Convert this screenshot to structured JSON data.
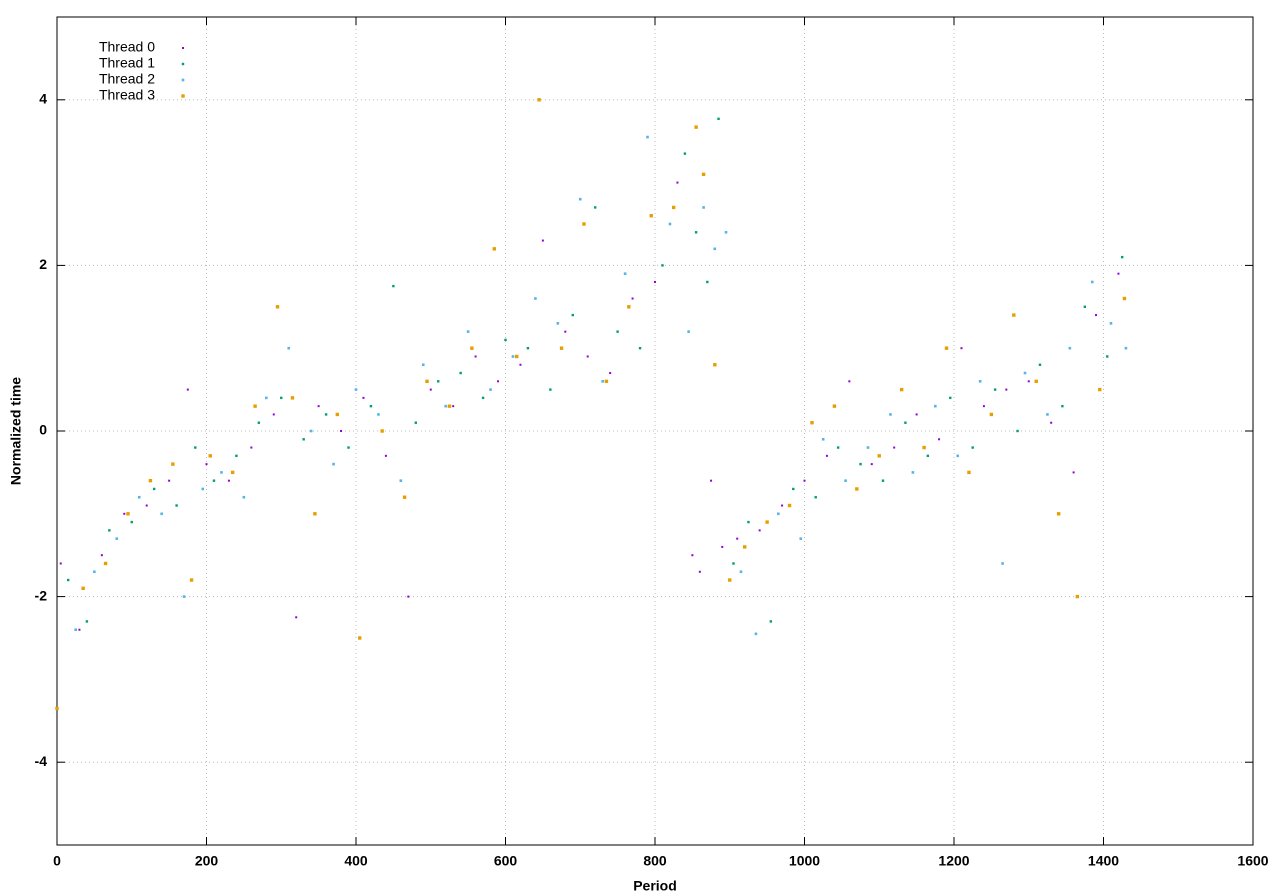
{
  "chart_data": {
    "type": "scatter",
    "x_label": "Period",
    "y_label": "Normalized time",
    "xlim": [
      0,
      1600
    ],
    "ylim": [
      -5,
      5
    ],
    "xticks": [
      0,
      200,
      400,
      600,
      800,
      1000,
      1200,
      1400,
      1600
    ],
    "yticks": [
      -4,
      -2,
      0,
      2,
      4
    ],
    "grid": true,
    "legend": "top-left",
    "series": [
      {
        "name": "Thread 0",
        "color": "#9400d3",
        "x": [
          5,
          30,
          60,
          90,
          120,
          150,
          175,
          200,
          230,
          260,
          290,
          320,
          350,
          380,
          410,
          440,
          470,
          500,
          530,
          560,
          590,
          620,
          650,
          680,
          710,
          740,
          770,
          800,
          830,
          850,
          860,
          875,
          890,
          910,
          940,
          970,
          1000,
          1030,
          1060,
          1090,
          1120,
          1150,
          1180,
          1210,
          1240,
          1270,
          1300,
          1330,
          1360,
          1390,
          1420
        ],
        "values": [
          -1.6,
          -2.4,
          -1.5,
          -1.0,
          -0.9,
          -0.6,
          0.5,
          -0.4,
          -0.6,
          -0.2,
          0.2,
          -2.25,
          0.3,
          0.0,
          0.4,
          -0.3,
          -2.0,
          0.5,
          0.3,
          0.9,
          0.6,
          0.8,
          2.3,
          1.2,
          0.9,
          0.7,
          1.6,
          1.8,
          3.0,
          -1.5,
          -1.7,
          -0.6,
          -1.4,
          -1.3,
          -1.2,
          -0.9,
          -0.6,
          -0.3,
          0.6,
          -0.4,
          -0.2,
          0.2,
          -0.1,
          1.0,
          0.3,
          0.5,
          0.6,
          0.1,
          -0.5,
          1.4,
          1.9
        ]
      },
      {
        "name": "Thread 1",
        "color": "#009e73",
        "x": [
          15,
          40,
          70,
          100,
          130,
          160,
          185,
          210,
          240,
          270,
          300,
          330,
          360,
          390,
          420,
          450,
          480,
          510,
          540,
          570,
          600,
          630,
          660,
          690,
          720,
          750,
          780,
          810,
          840,
          855,
          870,
          885,
          905,
          925,
          955,
          985,
          1015,
          1045,
          1075,
          1105,
          1135,
          1165,
          1195,
          1225,
          1255,
          1285,
          1315,
          1345,
          1375,
          1405,
          1425
        ],
        "values": [
          -1.8,
          -2.3,
          -1.2,
          -1.1,
          -0.7,
          -0.9,
          -0.2,
          -0.6,
          -0.3,
          0.1,
          0.4,
          -0.1,
          0.2,
          -0.2,
          0.3,
          1.75,
          0.1,
          0.6,
          0.7,
          0.4,
          1.1,
          1.0,
          0.5,
          1.4,
          2.7,
          1.2,
          1.0,
          2.0,
          3.35,
          2.4,
          1.8,
          3.77,
          -1.6,
          -1.1,
          -2.3,
          -0.7,
          -0.8,
          -0.2,
          -0.4,
          -0.6,
          0.1,
          -0.3,
          0.4,
          -0.2,
          0.5,
          0.0,
          0.8,
          0.3,
          1.5,
          0.9,
          2.1
        ]
      },
      {
        "name": "Thread 2",
        "color": "#56b4e9",
        "x": [
          25,
          50,
          80,
          110,
          140,
          170,
          195,
          220,
          250,
          280,
          310,
          340,
          370,
          400,
          430,
          460,
          490,
          520,
          550,
          580,
          610,
          640,
          670,
          700,
          730,
          760,
          790,
          820,
          845,
          865,
          880,
          895,
          915,
          935,
          965,
          995,
          1025,
          1055,
          1085,
          1115,
          1145,
          1175,
          1205,
          1235,
          1265,
          1295,
          1325,
          1355,
          1385,
          1410,
          1430
        ],
        "values": [
          -2.4,
          -1.7,
          -1.3,
          -0.8,
          -1.0,
          -2.0,
          -0.7,
          -0.5,
          -0.8,
          0.4,
          1.0,
          0.0,
          -0.4,
          0.5,
          0.2,
          -0.6,
          0.8,
          0.3,
          1.2,
          0.5,
          0.9,
          1.6,
          1.3,
          2.8,
          0.6,
          1.9,
          3.55,
          2.5,
          1.2,
          2.7,
          2.2,
          2.4,
          -1.7,
          -2.45,
          -1.0,
          -1.3,
          -0.1,
          -0.6,
          -0.2,
          0.2,
          -0.5,
          0.3,
          -0.3,
          0.6,
          -1.6,
          0.7,
          0.2,
          1.0,
          1.8,
          1.3,
          1.0
        ]
      },
      {
        "name": "Thread 3",
        "color": "#e69f00",
        "x": [
          0,
          35,
          65,
          95,
          125,
          155,
          180,
          205,
          235,
          265,
          295,
          315,
          345,
          375,
          405,
          435,
          465,
          495,
          525,
          555,
          585,
          615,
          645,
          675,
          705,
          735,
          765,
          795,
          825,
          855,
          865,
          880,
          900,
          920,
          950,
          980,
          1010,
          1040,
          1070,
          1100,
          1130,
          1160,
          1190,
          1220,
          1250,
          1280,
          1310,
          1340,
          1365,
          1395,
          1428
        ],
        "values": [
          -3.35,
          -1.9,
          -1.6,
          -1.0,
          -0.6,
          -0.4,
          -1.8,
          -0.3,
          -0.5,
          0.3,
          1.5,
          0.4,
          -1.0,
          0.2,
          -2.5,
          0.0,
          -0.8,
          0.6,
          0.3,
          1.0,
          2.2,
          0.9,
          4.0,
          1.0,
          2.5,
          0.6,
          1.5,
          2.6,
          2.7,
          3.67,
          3.1,
          0.8,
          -1.8,
          -1.4,
          -1.1,
          -0.9,
          0.1,
          0.3,
          -0.7,
          -0.3,
          0.5,
          -0.2,
          1.0,
          -0.5,
          0.2,
          1.4,
          0.6,
          -1.0,
          -2.0,
          0.5,
          1.6
        ]
      }
    ]
  }
}
